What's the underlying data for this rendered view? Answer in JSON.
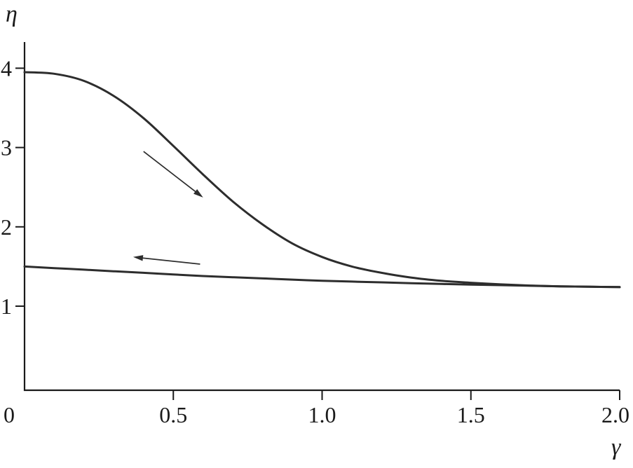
{
  "figure": {
    "background": "#ffffff",
    "axis_color": "#1a1a1a",
    "curve_color": "#2d2d2d"
  },
  "chart_data": {
    "type": "line",
    "title": "",
    "xlabel": "γ",
    "ylabel": "η",
    "xlim": [
      0,
      2.0
    ],
    "ylim": [
      -0.06,
      4.33
    ],
    "grid": false,
    "legend": "none",
    "x_ticks": [
      {
        "value": 0,
        "label": "0"
      },
      {
        "value": 0.5,
        "label": "0.5"
      },
      {
        "value": 1.0,
        "label": "1.0"
      },
      {
        "value": 1.5,
        "label": "1.5"
      },
      {
        "value": 2.0,
        "label": "2.0"
      }
    ],
    "y_ticks": [
      {
        "value": 1,
        "label": "1"
      },
      {
        "value": 2,
        "label": "2"
      },
      {
        "value": 3,
        "label": "3"
      },
      {
        "value": 4,
        "label": "4"
      }
    ],
    "series": [
      {
        "name": "upper-curve-forward-sweep",
        "x": [
          0,
          0.1,
          0.2,
          0.3,
          0.4,
          0.5,
          0.6,
          0.7,
          0.8,
          0.9,
          1.0,
          1.1,
          1.2,
          1.3,
          1.4,
          1.5,
          1.6,
          1.7,
          1.8,
          1.9,
          2.0
        ],
        "y": [
          3.95,
          3.93,
          3.84,
          3.65,
          3.37,
          3.02,
          2.66,
          2.32,
          2.03,
          1.79,
          1.62,
          1.5,
          1.42,
          1.36,
          1.32,
          1.295,
          1.275,
          1.26,
          1.25,
          1.245,
          1.24
        ]
      },
      {
        "name": "lower-curve-return-sweep",
        "x": [
          0,
          0.1,
          0.2,
          0.3,
          0.4,
          0.5,
          0.6,
          0.7,
          0.8,
          0.9,
          1.0,
          1.1,
          1.2,
          1.3,
          1.4,
          1.5,
          1.6,
          1.7,
          1.8,
          1.9,
          2.0
        ],
        "y": [
          1.5,
          1.48,
          1.46,
          1.44,
          1.42,
          1.4,
          1.38,
          1.365,
          1.35,
          1.335,
          1.32,
          1.31,
          1.3,
          1.29,
          1.28,
          1.272,
          1.265,
          1.257,
          1.25,
          1.245,
          1.24
        ]
      }
    ],
    "annotations": [
      {
        "type": "arrow",
        "name": "arrow-down-along-upper-curve",
        "from": [
          0.4,
          2.95
        ],
        "to": [
          0.6,
          2.37
        ]
      },
      {
        "type": "arrow",
        "name": "arrow-left-along-lower-curve",
        "from": [
          0.59,
          1.53
        ],
        "to": [
          0.365,
          1.62
        ]
      }
    ]
  }
}
